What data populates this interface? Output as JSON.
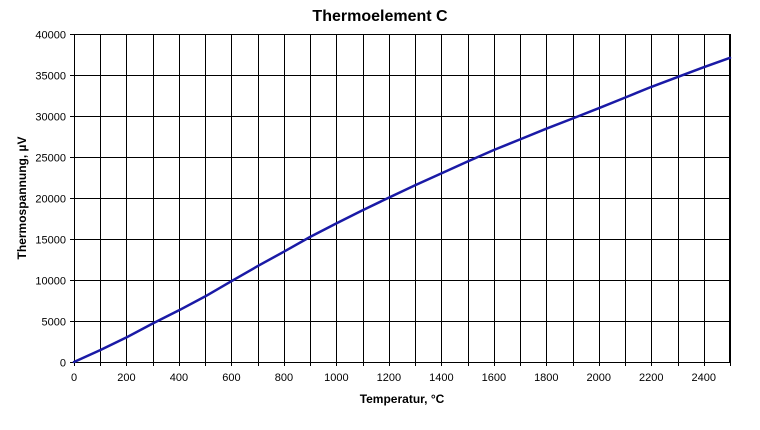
{
  "chart_data": {
    "type": "line",
    "title": "Thermoelement C",
    "xlabel": "Temperatur, °C",
    "ylabel": "Thermospannung, µV",
    "xlim": [
      0,
      2500
    ],
    "ylim": [
      0,
      40000
    ],
    "x_ticks": [
      0,
      200,
      400,
      600,
      800,
      1000,
      1200,
      1400,
      1600,
      1800,
      2000,
      2200,
      2400
    ],
    "x_grid_step": 100,
    "y_ticks": [
      0,
      5000,
      10000,
      15000,
      20000,
      25000,
      30000,
      35000,
      40000
    ],
    "grid": true,
    "legend": "none",
    "series": [
      {
        "color": "#1a1aa6",
        "x": [
          0,
          100,
          200,
          300,
          400,
          500,
          600,
          700,
          800,
          900,
          1000,
          1100,
          1200,
          1300,
          1400,
          1500,
          1600,
          1700,
          1800,
          1900,
          2000,
          2100,
          2200,
          2300,
          2400,
          2500
        ],
        "y": [
          0,
          1450,
          3000,
          4700,
          6300,
          8000,
          9850,
          11700,
          13450,
          15250,
          16900,
          18500,
          20050,
          21550,
          23000,
          24450,
          25850,
          27150,
          28450,
          29700,
          30950,
          32250,
          33550,
          34750,
          35950,
          37100
        ]
      }
    ]
  }
}
